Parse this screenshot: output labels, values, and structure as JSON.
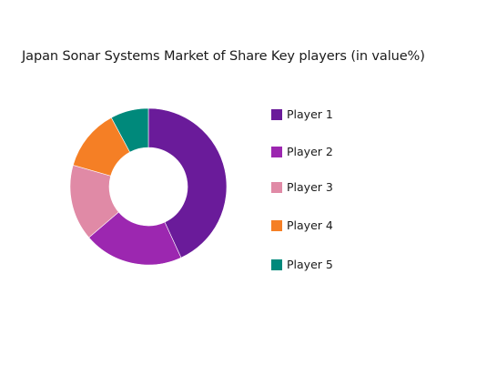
{
  "chart_data": {
    "type": "pie",
    "title": "Japan Sonar Systems Market of Share Key players (in value%)",
    "donut": true,
    "legend_position": "right",
    "categories": [
      "Player 1",
      "Player 2",
      "Player 3",
      "Player 4",
      "Player 5"
    ],
    "values": [
      44,
      21,
      16,
      13,
      8
    ],
    "colors": [
      "#6a1b9a",
      "#9c27b0",
      "#e08aa6",
      "#f57f25",
      "#00897b"
    ]
  }
}
